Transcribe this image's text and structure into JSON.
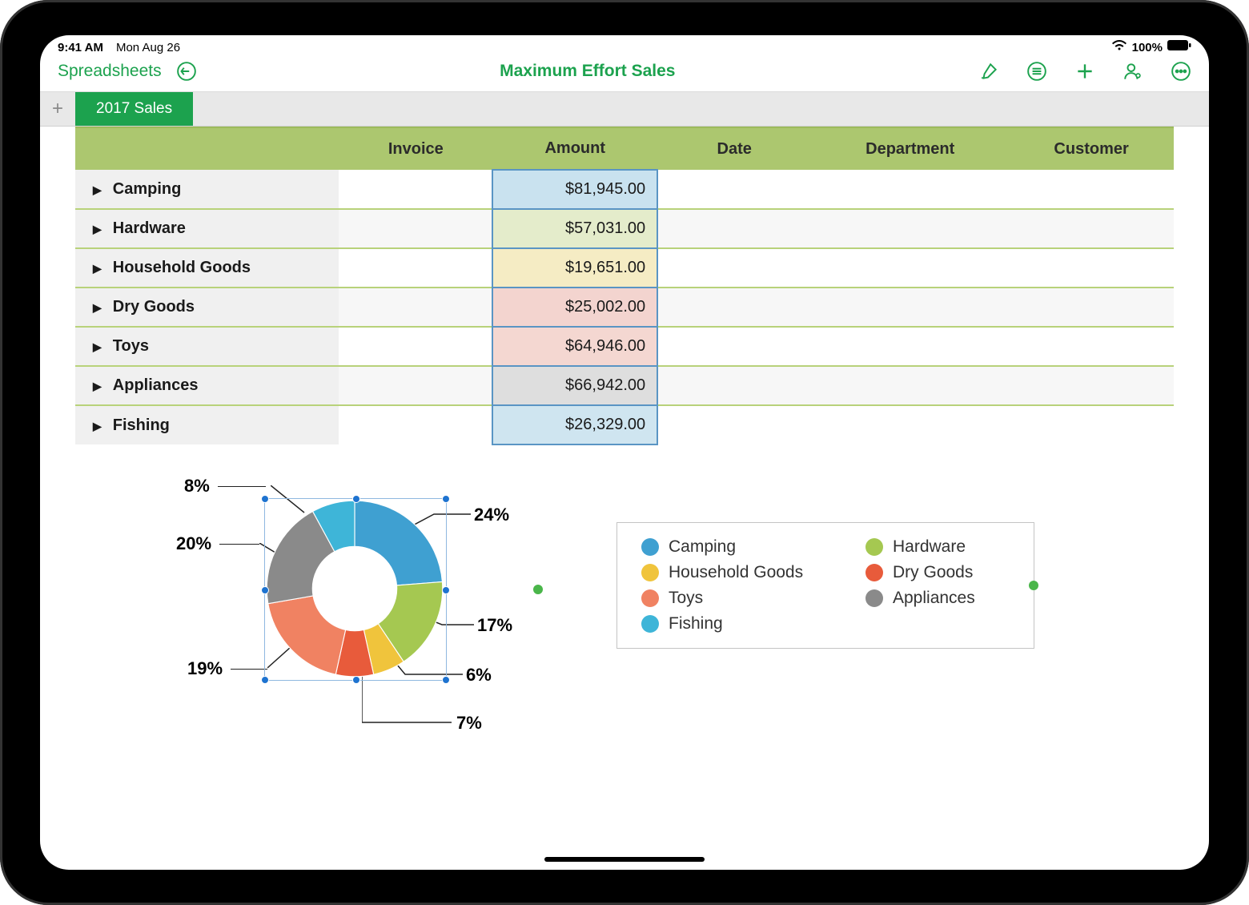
{
  "statusBar": {
    "time": "9:41 AM",
    "date": "Mon Aug 26",
    "wifi": true,
    "battery": "100%"
  },
  "nav": {
    "back": "Spreadsheets",
    "title": "Maximum Effort Sales",
    "accent": "#1ca24e"
  },
  "tabs": {
    "active": "2017 Sales"
  },
  "table": {
    "headers": [
      "",
      "Invoice",
      "Amount",
      "Date",
      "Department",
      "Customer"
    ],
    "headerBg": "#acc76f",
    "rowDivider": "#b8d27a",
    "amountBorder": "#5a95c4",
    "rows": [
      {
        "category": "Camping",
        "amount": "$81,945.00",
        "amountBg": "#c9e2ef",
        "altRow": false
      },
      {
        "category": "Hardware",
        "amount": "$57,031.00",
        "amountBg": "#e4eccb",
        "altRow": true
      },
      {
        "category": "Household Goods",
        "amount": "$19,651.00",
        "amountBg": "#f5ecc4",
        "altRow": false
      },
      {
        "category": "Dry Goods",
        "amount": "$25,002.00",
        "amountBg": "#f3d4cf",
        "altRow": true
      },
      {
        "category": "Toys",
        "amount": "$64,946.00",
        "amountBg": "#f4d7d1",
        "altRow": false
      },
      {
        "category": "Appliances",
        "amount": "$66,942.00",
        "amountBg": "#dedede",
        "altRow": true
      },
      {
        "category": "Fishing",
        "amount": "$26,329.00",
        "amountBg": "#cfe5f0",
        "altRow": false
      }
    ]
  },
  "chart": {
    "type": "donut",
    "innerRadiusRatio": 0.48,
    "selectionColor": "#1e73d0",
    "selectionBoxColor": "#8fb8e0",
    "legendHandleColor": "#4ab64a",
    "slices": [
      {
        "label": "Camping",
        "percent": 24,
        "color": "#3fa0d1"
      },
      {
        "label": "Hardware",
        "percent": 17,
        "color": "#a5c851"
      },
      {
        "label": "Household Goods",
        "percent": 6,
        "color": "#f0c43c"
      },
      {
        "label": "Dry Goods",
        "percent": 7,
        "color": "#e85b3b"
      },
      {
        "label": "Toys",
        "percent": 19,
        "color": "#f08262"
      },
      {
        "label": "Appliances",
        "percent": 20,
        "color": "#8a8a8a"
      },
      {
        "label": "Fishing",
        "percent": 8,
        "color": "#3eb5d8"
      }
    ],
    "callouts": {
      "p24": "24%",
      "p17": "17%",
      "p6": "6%",
      "p7": "7%",
      "p19": "19%",
      "p20": "20%",
      "p8": "8%"
    },
    "legendOrder": [
      [
        "Camping",
        "Hardware"
      ],
      [
        "Household Goods",
        "Dry Goods"
      ],
      [
        "Toys",
        "Appliances"
      ],
      [
        "Fishing",
        null
      ]
    ]
  }
}
